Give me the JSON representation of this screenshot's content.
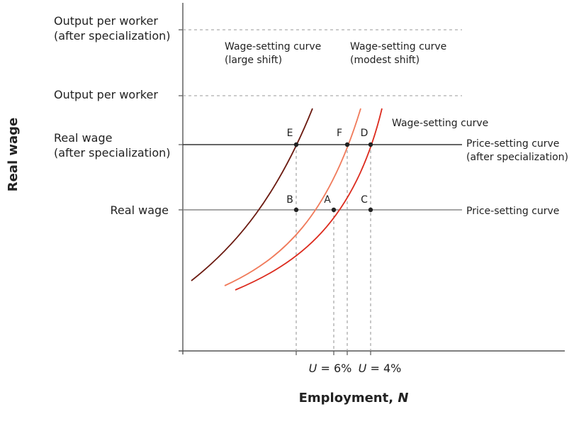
{
  "axes": {
    "y_title": "Real wage",
    "x_title_main": "Employment, ",
    "x_title_var": "N"
  },
  "y_levels": {
    "output_after": [
      "Output per worker",
      "(after specialization)"
    ],
    "output": "Output per worker",
    "wage_after": [
      "Real wage",
      "(after specialization)"
    ],
    "wage": "Real wage"
  },
  "curves": {
    "ws_large": [
      "Wage-setting curve",
      "(large shift)"
    ],
    "ws_modest": [
      "Wage-setting curve",
      "(modest shift)"
    ],
    "ws": "Wage-setting curve",
    "ps_after": [
      "Price-setting curve",
      "(after specialization)"
    ],
    "ps": "Price-setting curve"
  },
  "points": {
    "E": "E",
    "F": "F",
    "D": "D",
    "B": "B",
    "A": "A",
    "C": "C"
  },
  "x_ticks": {
    "u6_var": "U",
    "u6_rest": " = 6%",
    "u4_var": "U",
    "u4_rest": " = 4%"
  },
  "colors": {
    "ws_large": "#6b1a10",
    "ws_modest": "#f07a5a",
    "ws": "#dc2b1e",
    "ps_after": "#333333",
    "ps": "#888888",
    "axis": "#555555",
    "dashed": "#9a9a9a"
  }
}
